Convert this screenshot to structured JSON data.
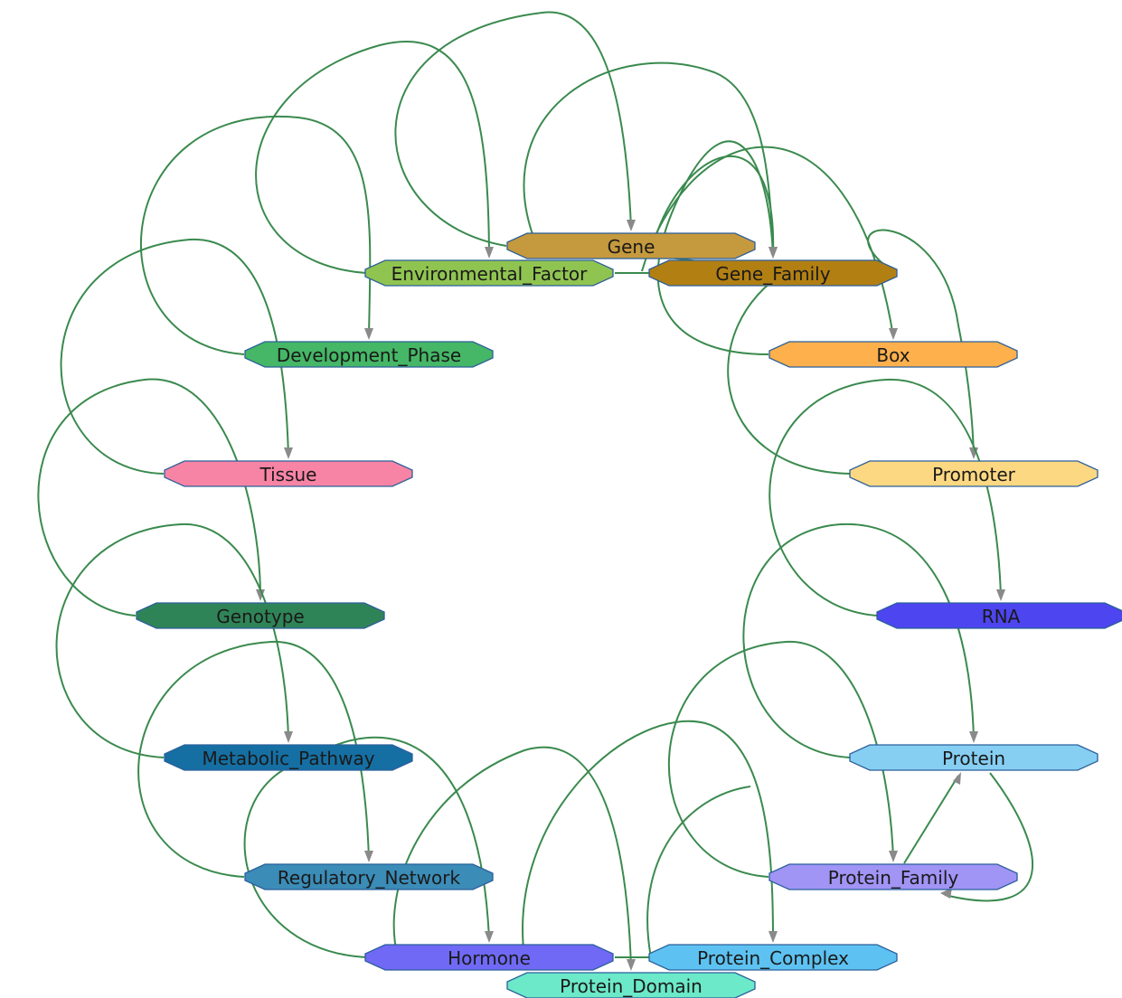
{
  "diagram": {
    "nodes": [
      {
        "id": "gene",
        "label": "Gene",
        "color": "#c5993d"
      },
      {
        "id": "environmental_factor",
        "label": "Environmental_Factor",
        "color": "#90c451"
      },
      {
        "id": "gene_family",
        "label": "Gene_Family",
        "color": "#b27f12"
      },
      {
        "id": "development_phase",
        "label": "Development_Phase",
        "color": "#45b766"
      },
      {
        "id": "box",
        "label": "Box",
        "color": "#fdb04c"
      },
      {
        "id": "tissue",
        "label": "Tissue",
        "color": "#f884a5"
      },
      {
        "id": "promoter",
        "label": "Promoter",
        "color": "#fdd882"
      },
      {
        "id": "genotype",
        "label": "Genotype",
        "color": "#2f8457"
      },
      {
        "id": "rna",
        "label": "RNA",
        "color": "#4d45ef"
      },
      {
        "id": "metabolic_pathway",
        "label": "Metabolic_Pathway",
        "color": "#156fa3"
      },
      {
        "id": "protein",
        "label": "Protein",
        "color": "#86cff3"
      },
      {
        "id": "regulatory_network",
        "label": "Regulatory_Network",
        "color": "#3b8cb7"
      },
      {
        "id": "protein_family",
        "label": "Protein_Family",
        "color": "#a094f5"
      },
      {
        "id": "hormone",
        "label": "Hormone",
        "color": "#6f69f5"
      },
      {
        "id": "protein_complex",
        "label": "Protein_Complex",
        "color": "#5dc2f1"
      },
      {
        "id": "protein_domain",
        "label": "Protein_Domain",
        "color": "#6be9c8"
      }
    ],
    "edge_color": "#3a8a4e",
    "arrow_color": "#8a8a8a",
    "node_border_color": "#2b5f9a"
  }
}
